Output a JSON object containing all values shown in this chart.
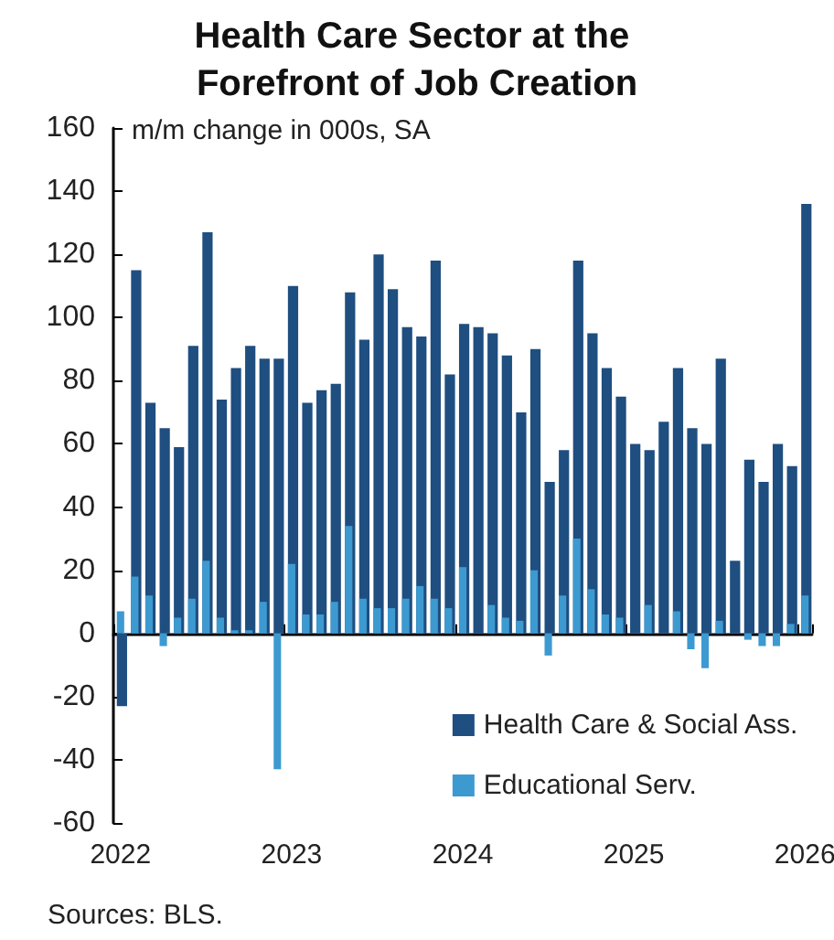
{
  "chart_data": {
    "type": "bar",
    "title": "Health Care Sector at the Forefront of Job Creation",
    "subtitle": "m/m change in 000s, SA",
    "categories": [
      "2022",
      null,
      null,
      null,
      null,
      null,
      null,
      null,
      null,
      null,
      null,
      null,
      "2023",
      null,
      null,
      null,
      null,
      null,
      null,
      null,
      null,
      null,
      null,
      null,
      "2024",
      null,
      null,
      null,
      null,
      null,
      null,
      null,
      null,
      null,
      null,
      null,
      "2025",
      null,
      null,
      null,
      null,
      null,
      null,
      null,
      null,
      null,
      null,
      null,
      "2026"
    ],
    "series": [
      {
        "name": "Health Care & Social Ass.",
        "color": "#1f4e80",
        "values": [
          -23,
          115,
          73,
          65,
          59,
          91,
          127,
          74,
          84,
          91,
          87,
          87,
          110,
          73,
          77,
          79,
          108,
          93,
          120,
          109,
          97,
          94,
          118,
          82,
          98,
          97,
          95,
          88,
          70,
          90,
          48,
          58,
          118,
          95,
          84,
          75,
          60,
          58,
          67,
          84,
          65,
          60,
          87,
          23,
          55,
          48,
          60,
          53,
          136
        ]
      },
      {
        "name": "Educational Serv.",
        "color": "#3d9ad1",
        "values": [
          7,
          18,
          12,
          -4,
          5,
          11,
          23,
          5,
          1,
          1,
          10,
          -43,
          22,
          6,
          6,
          10,
          34,
          11,
          8,
          8,
          11,
          15,
          11,
          8,
          21,
          0,
          9,
          5,
          4,
          20,
          -7,
          12,
          30,
          14,
          6,
          5,
          0,
          9,
          0,
          7,
          -5,
          -11,
          4,
          0,
          -2,
          -4,
          -4,
          3,
          12
        ]
      }
    ],
    "ylim": [
      -60,
      160
    ],
    "yticks": [
      -60,
      -40,
      -20,
      0,
      20,
      40,
      60,
      80,
      100,
      120,
      140,
      160
    ],
    "legend": "bottom right",
    "annotations": [
      "Sources: BLS."
    ]
  }
}
